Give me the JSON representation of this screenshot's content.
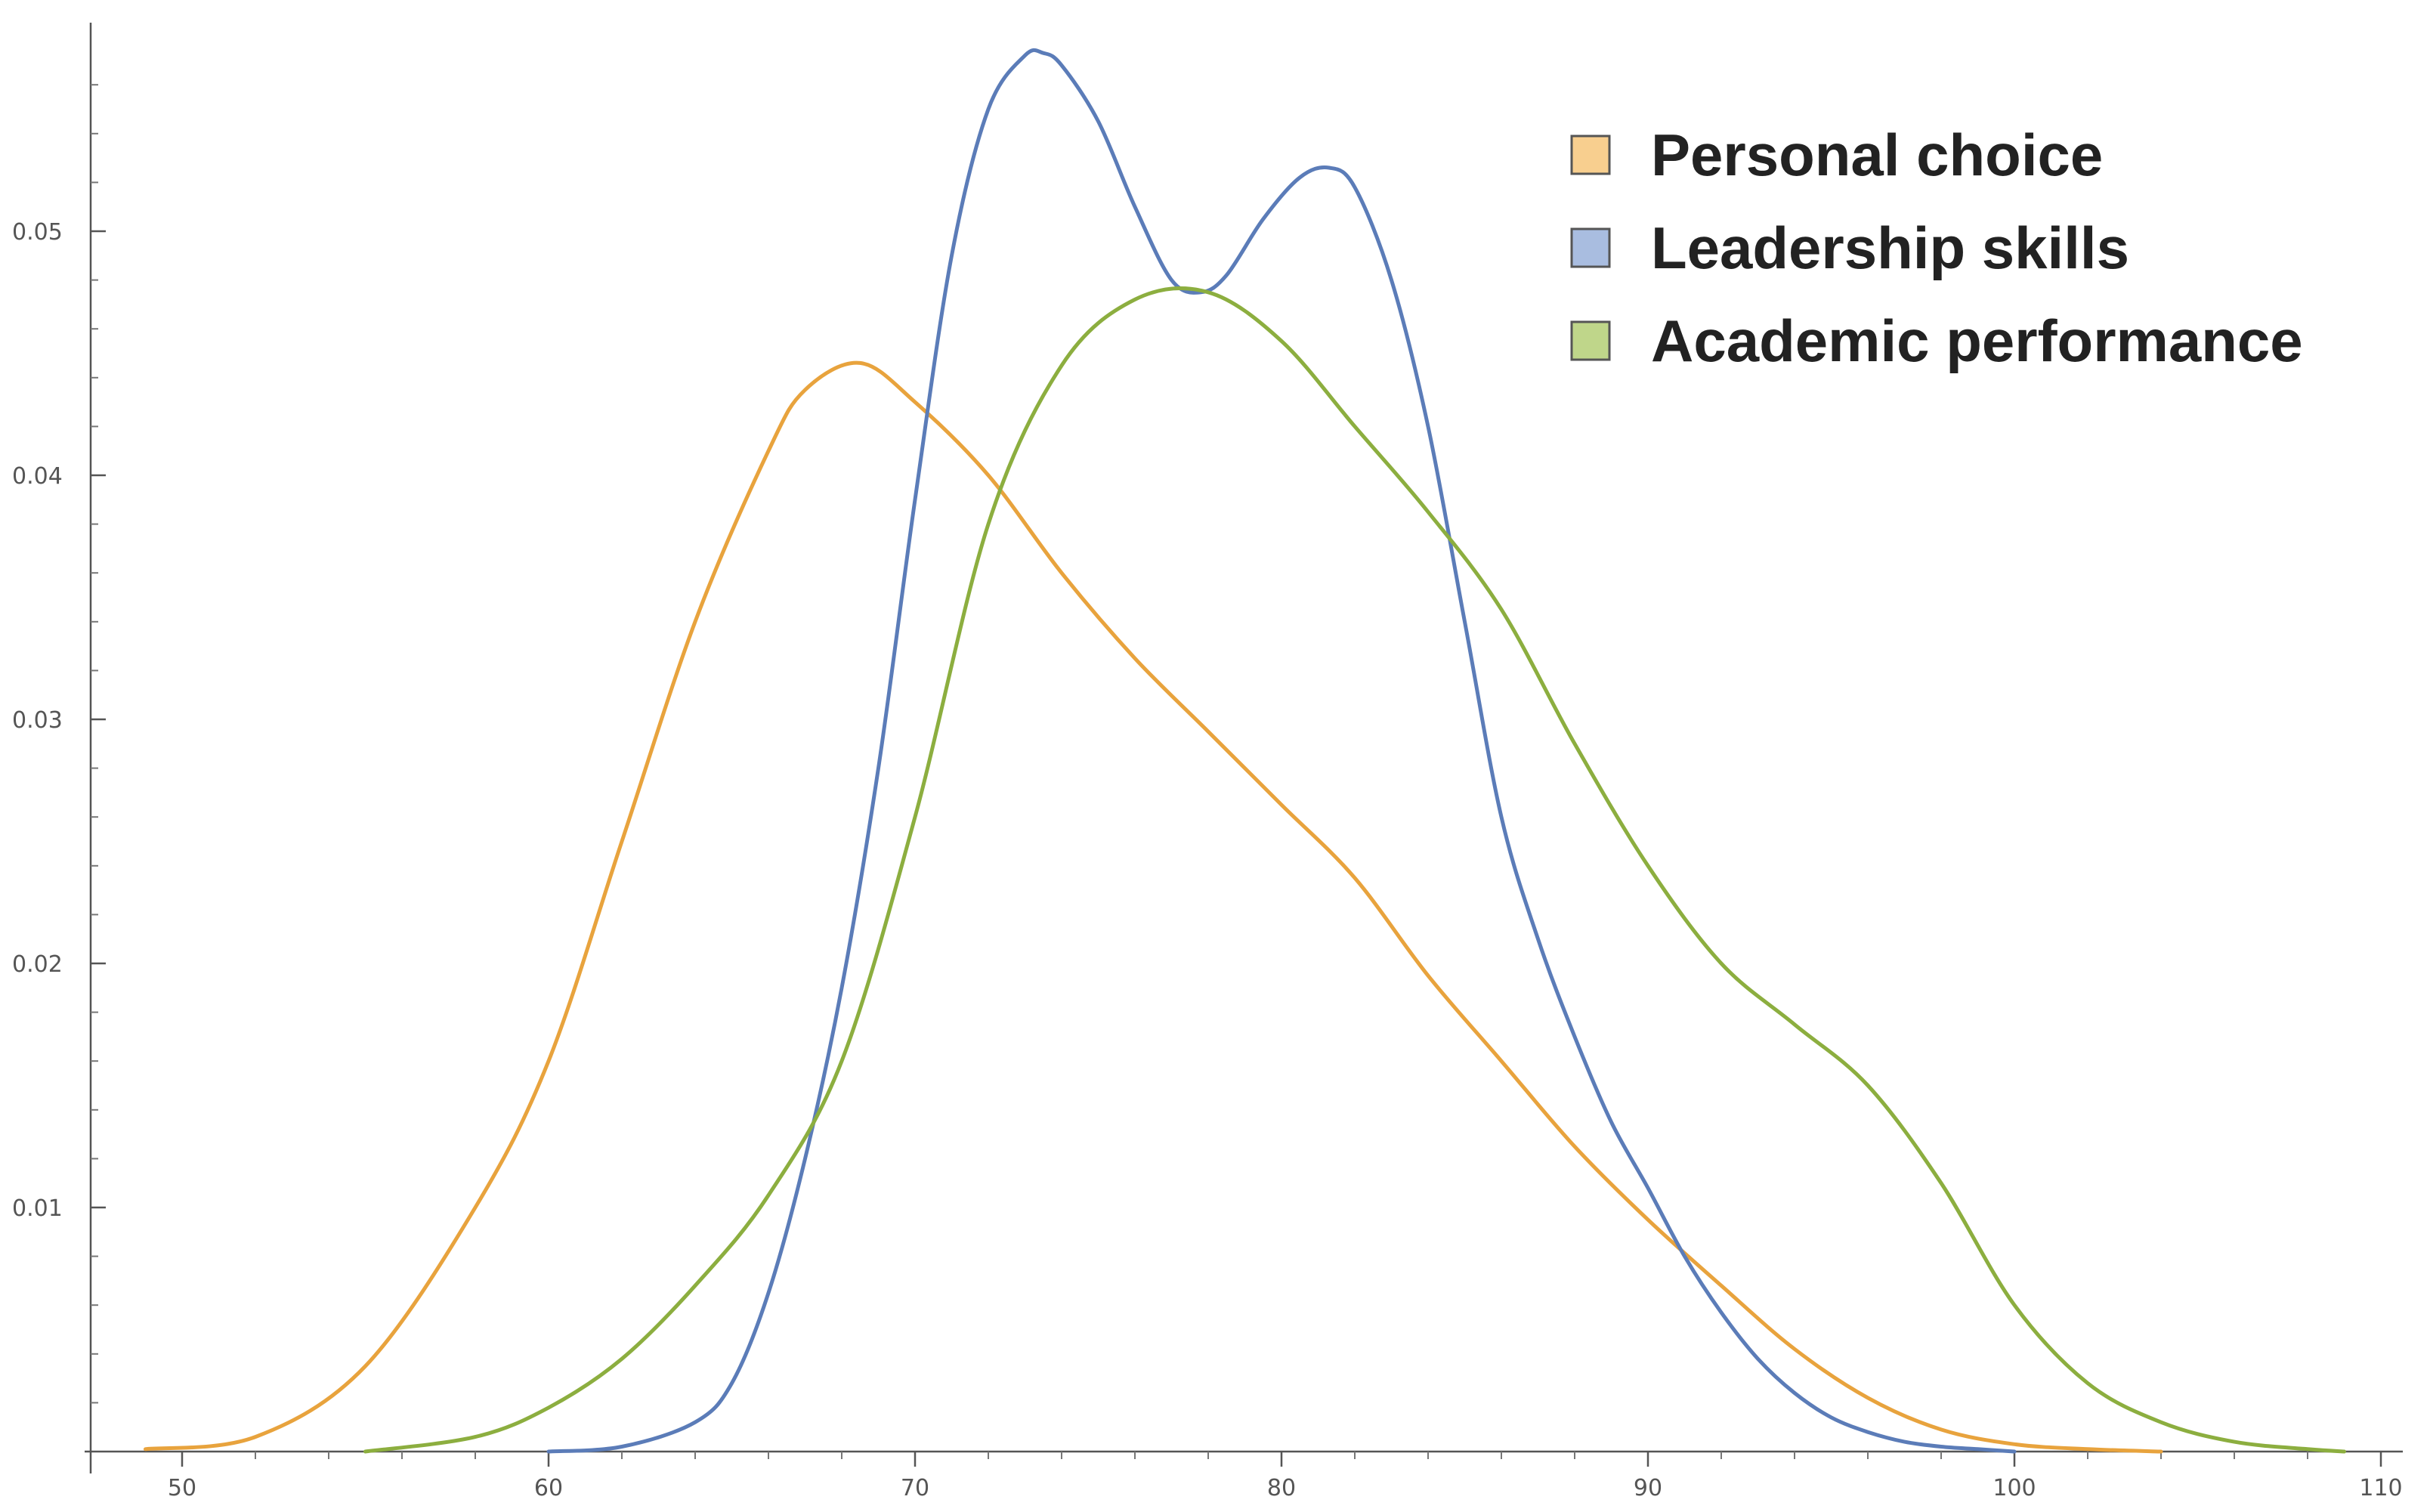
{
  "chart_data": {
    "type": "line",
    "title": "",
    "xlabel": "",
    "ylabel": "",
    "xlim": [
      48,
      110
    ],
    "ylim": [
      0,
      0.058
    ],
    "xticks": [
      50,
      60,
      70,
      80,
      90,
      100,
      110
    ],
    "xtick_labels": [
      "50",
      "60",
      "70",
      "80",
      "90",
      "100",
      "110"
    ],
    "yticks": [
      0.01,
      0.02,
      0.03,
      0.04,
      0.05
    ],
    "ytick_labels": [
      "0.01",
      "0.02",
      "0.03",
      "0.04",
      "0.05"
    ],
    "grid": false,
    "legend_position": "top-right",
    "series": [
      {
        "name": "Personal choice",
        "color": "#E8A33D",
        "fill": "#F8CF8F",
        "x": [
          49,
          52,
          55,
          58,
          60,
          62,
          64,
          66,
          67,
          68.5,
          70,
          72,
          74,
          76,
          78,
          80,
          82,
          84,
          86,
          88,
          90,
          92,
          94,
          96,
          98,
          100,
          102,
          104
        ],
        "y": [
          0.0001,
          0.0006,
          0.0035,
          0.01,
          0.016,
          0.025,
          0.034,
          0.041,
          0.0435,
          0.0446,
          0.043,
          0.04,
          0.036,
          0.0325,
          0.0295,
          0.0265,
          0.0235,
          0.0195,
          0.016,
          0.0125,
          0.0095,
          0.0068,
          0.0042,
          0.0022,
          0.0009,
          0.0003,
          0.0001,
          0.0
        ]
      },
      {
        "name": "Leadership skills",
        "color": "#5B7CB8",
        "fill": "#A9BDE0",
        "x": [
          60,
          62,
          64,
          65,
          66,
          67,
          68,
          69,
          70,
          71,
          72,
          73,
          73.5,
          74,
          75,
          76,
          77,
          77.8,
          78.5,
          79.5,
          80.5,
          81.3,
          82,
          83,
          84,
          85,
          86,
          87,
          88,
          89,
          90,
          91,
          92,
          93,
          94,
          95,
          96,
          97,
          98,
          99,
          100
        ],
        "y": [
          0.0,
          0.0002,
          0.0012,
          0.0028,
          0.0065,
          0.012,
          0.019,
          0.028,
          0.039,
          0.049,
          0.055,
          0.0572,
          0.0573,
          0.0568,
          0.0545,
          0.051,
          0.048,
          0.0475,
          0.0482,
          0.0505,
          0.0522,
          0.0526,
          0.0518,
          0.048,
          0.042,
          0.034,
          0.026,
          0.021,
          0.017,
          0.0135,
          0.0108,
          0.008,
          0.0057,
          0.0038,
          0.0024,
          0.0014,
          0.0008,
          0.0004,
          0.0002,
          0.0001,
          0.0
        ]
      },
      {
        "name": "Academic performance",
        "color": "#8CAE3F",
        "fill": "#BFD68A",
        "x": [
          55,
          58,
          60,
          62,
          64,
          66,
          68,
          70,
          72,
          74,
          76,
          78,
          80,
          82,
          84,
          86,
          88,
          90,
          92,
          94,
          96,
          98,
          100,
          102,
          104,
          106,
          108,
          109
        ],
        "y": [
          0.0,
          0.0006,
          0.0018,
          0.0038,
          0.0068,
          0.0105,
          0.016,
          0.026,
          0.038,
          0.0445,
          0.0472,
          0.0475,
          0.0455,
          0.042,
          0.0385,
          0.0345,
          0.029,
          0.024,
          0.02,
          0.0175,
          0.015,
          0.011,
          0.006,
          0.0028,
          0.0012,
          0.0004,
          0.0001,
          0.0
        ]
      }
    ]
  }
}
